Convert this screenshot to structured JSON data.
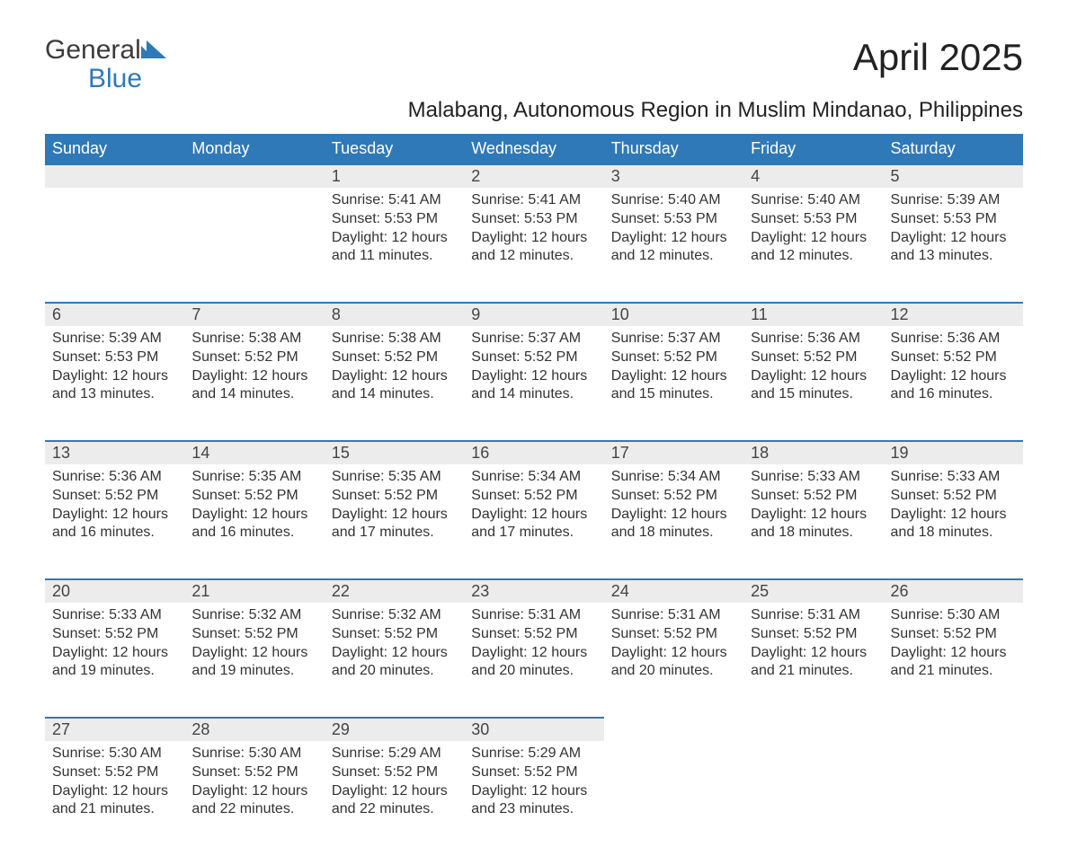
{
  "logo": {
    "text1": "General",
    "text2": "Blue"
  },
  "title": "April 2025",
  "subtitle": "Malabang, Autonomous Region in Muslim Mindanao, Philippines",
  "headers": [
    "Sunday",
    "Monday",
    "Tuesday",
    "Wednesday",
    "Thursday",
    "Friday",
    "Saturday"
  ],
  "colors": {
    "header_bg": "#2f79b9",
    "header_fg": "#ffffff",
    "daynum_bg": "#ececec",
    "row_border": "#2f79b9",
    "text": "#333333",
    "logo_gray": "#3b3b3b",
    "logo_blue": "#2f79b9",
    "background": "#ffffff"
  },
  "weeks": [
    [
      null,
      null,
      {
        "n": "1",
        "sr": "Sunrise: 5:41 AM",
        "ss": "Sunset: 5:53 PM",
        "d1": "Daylight: 12 hours",
        "d2": "and 11 minutes."
      },
      {
        "n": "2",
        "sr": "Sunrise: 5:41 AM",
        "ss": "Sunset: 5:53 PM",
        "d1": "Daylight: 12 hours",
        "d2": "and 12 minutes."
      },
      {
        "n": "3",
        "sr": "Sunrise: 5:40 AM",
        "ss": "Sunset: 5:53 PM",
        "d1": "Daylight: 12 hours",
        "d2": "and 12 minutes."
      },
      {
        "n": "4",
        "sr": "Sunrise: 5:40 AM",
        "ss": "Sunset: 5:53 PM",
        "d1": "Daylight: 12 hours",
        "d2": "and 12 minutes."
      },
      {
        "n": "5",
        "sr": "Sunrise: 5:39 AM",
        "ss": "Sunset: 5:53 PM",
        "d1": "Daylight: 12 hours",
        "d2": "and 13 minutes."
      }
    ],
    [
      {
        "n": "6",
        "sr": "Sunrise: 5:39 AM",
        "ss": "Sunset: 5:53 PM",
        "d1": "Daylight: 12 hours",
        "d2": "and 13 minutes."
      },
      {
        "n": "7",
        "sr": "Sunrise: 5:38 AM",
        "ss": "Sunset: 5:52 PM",
        "d1": "Daylight: 12 hours",
        "d2": "and 14 minutes."
      },
      {
        "n": "8",
        "sr": "Sunrise: 5:38 AM",
        "ss": "Sunset: 5:52 PM",
        "d1": "Daylight: 12 hours",
        "d2": "and 14 minutes."
      },
      {
        "n": "9",
        "sr": "Sunrise: 5:37 AM",
        "ss": "Sunset: 5:52 PM",
        "d1": "Daylight: 12 hours",
        "d2": "and 14 minutes."
      },
      {
        "n": "10",
        "sr": "Sunrise: 5:37 AM",
        "ss": "Sunset: 5:52 PM",
        "d1": "Daylight: 12 hours",
        "d2": "and 15 minutes."
      },
      {
        "n": "11",
        "sr": "Sunrise: 5:36 AM",
        "ss": "Sunset: 5:52 PM",
        "d1": "Daylight: 12 hours",
        "d2": "and 15 minutes."
      },
      {
        "n": "12",
        "sr": "Sunrise: 5:36 AM",
        "ss": "Sunset: 5:52 PM",
        "d1": "Daylight: 12 hours",
        "d2": "and 16 minutes."
      }
    ],
    [
      {
        "n": "13",
        "sr": "Sunrise: 5:36 AM",
        "ss": "Sunset: 5:52 PM",
        "d1": "Daylight: 12 hours",
        "d2": "and 16 minutes."
      },
      {
        "n": "14",
        "sr": "Sunrise: 5:35 AM",
        "ss": "Sunset: 5:52 PM",
        "d1": "Daylight: 12 hours",
        "d2": "and 16 minutes."
      },
      {
        "n": "15",
        "sr": "Sunrise: 5:35 AM",
        "ss": "Sunset: 5:52 PM",
        "d1": "Daylight: 12 hours",
        "d2": "and 17 minutes."
      },
      {
        "n": "16",
        "sr": "Sunrise: 5:34 AM",
        "ss": "Sunset: 5:52 PM",
        "d1": "Daylight: 12 hours",
        "d2": "and 17 minutes."
      },
      {
        "n": "17",
        "sr": "Sunrise: 5:34 AM",
        "ss": "Sunset: 5:52 PM",
        "d1": "Daylight: 12 hours",
        "d2": "and 18 minutes."
      },
      {
        "n": "18",
        "sr": "Sunrise: 5:33 AM",
        "ss": "Sunset: 5:52 PM",
        "d1": "Daylight: 12 hours",
        "d2": "and 18 minutes."
      },
      {
        "n": "19",
        "sr": "Sunrise: 5:33 AM",
        "ss": "Sunset: 5:52 PM",
        "d1": "Daylight: 12 hours",
        "d2": "and 18 minutes."
      }
    ],
    [
      {
        "n": "20",
        "sr": "Sunrise: 5:33 AM",
        "ss": "Sunset: 5:52 PM",
        "d1": "Daylight: 12 hours",
        "d2": "and 19 minutes."
      },
      {
        "n": "21",
        "sr": "Sunrise: 5:32 AM",
        "ss": "Sunset: 5:52 PM",
        "d1": "Daylight: 12 hours",
        "d2": "and 19 minutes."
      },
      {
        "n": "22",
        "sr": "Sunrise: 5:32 AM",
        "ss": "Sunset: 5:52 PM",
        "d1": "Daylight: 12 hours",
        "d2": "and 20 minutes."
      },
      {
        "n": "23",
        "sr": "Sunrise: 5:31 AM",
        "ss": "Sunset: 5:52 PM",
        "d1": "Daylight: 12 hours",
        "d2": "and 20 minutes."
      },
      {
        "n": "24",
        "sr": "Sunrise: 5:31 AM",
        "ss": "Sunset: 5:52 PM",
        "d1": "Daylight: 12 hours",
        "d2": "and 20 minutes."
      },
      {
        "n": "25",
        "sr": "Sunrise: 5:31 AM",
        "ss": "Sunset: 5:52 PM",
        "d1": "Daylight: 12 hours",
        "d2": "and 21 minutes."
      },
      {
        "n": "26",
        "sr": "Sunrise: 5:30 AM",
        "ss": "Sunset: 5:52 PM",
        "d1": "Daylight: 12 hours",
        "d2": "and 21 minutes."
      }
    ],
    [
      {
        "n": "27",
        "sr": "Sunrise: 5:30 AM",
        "ss": "Sunset: 5:52 PM",
        "d1": "Daylight: 12 hours",
        "d2": "and 21 minutes."
      },
      {
        "n": "28",
        "sr": "Sunrise: 5:30 AM",
        "ss": "Sunset: 5:52 PM",
        "d1": "Daylight: 12 hours",
        "d2": "and 22 minutes."
      },
      {
        "n": "29",
        "sr": "Sunrise: 5:29 AM",
        "ss": "Sunset: 5:52 PM",
        "d1": "Daylight: 12 hours",
        "d2": "and 22 minutes."
      },
      {
        "n": "30",
        "sr": "Sunrise: 5:29 AM",
        "ss": "Sunset: 5:52 PM",
        "d1": "Daylight: 12 hours",
        "d2": "and 23 minutes."
      },
      null,
      null,
      null
    ]
  ]
}
